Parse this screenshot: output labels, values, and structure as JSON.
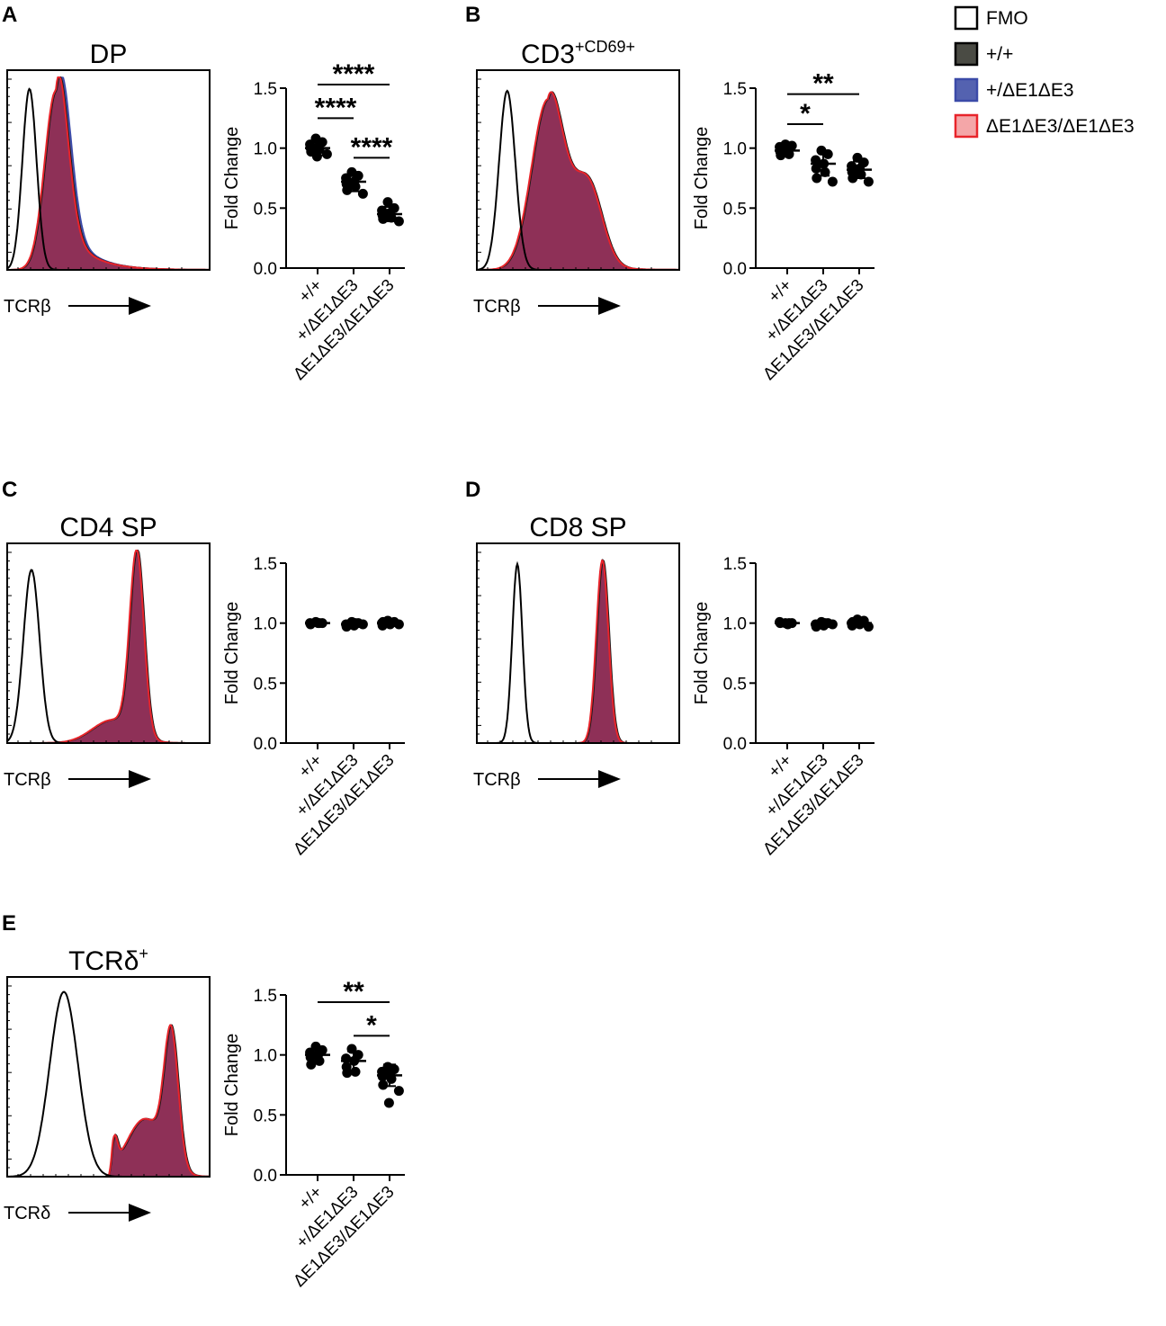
{
  "figure": {
    "legend": [
      {
        "label": "FMO",
        "fill": "#ffffff",
        "stroke": "#000000"
      },
      {
        "label": "+/+",
        "fill": "#4a4b44",
        "stroke": "#000000"
      },
      {
        "label": "+/ΔE1ΔE3",
        "fill": "#5462b0",
        "stroke": "#3b4aa8"
      },
      {
        "label": "ΔE1ΔE3/ΔE1ΔE3",
        "fill": "#f4a6a8",
        "stroke": "#e8242b"
      }
    ],
    "colors": {
      "overlay_fill": "#8e3057",
      "overlay_stroke": "#e8242b",
      "blue_edge": "#3b4aa8",
      "fmo_line": "#000000"
    }
  },
  "chart_data": [
    {
      "panel": "A",
      "type": "histogram",
      "title": "DP",
      "title_sup": "",
      "xlabel": "TCRβ",
      "fmo_peaks": [
        {
          "mu": 0.11,
          "sigma": 0.035,
          "height": 0.94
        }
      ],
      "sample_peaks": [
        {
          "mu": 0.24,
          "sigma": 0.055,
          "height": 0.93
        }
      ],
      "sample_tail": 0.35,
      "blue_shift": 0.015
    },
    {
      "panel": "A",
      "type": "scatter",
      "ylabel": "Fold Change",
      "categories": [
        "+/+",
        "+/ΔE1ΔE3",
        "ΔE1ΔE3/ΔE1ΔE3"
      ],
      "ylim": [
        0,
        1.5
      ],
      "yticks": [
        "0.0",
        "0.5",
        "1.0",
        "1.5"
      ],
      "groups": [
        {
          "mean": 1.0,
          "sd": 0.06,
          "points": [
            1.08,
            1.05,
            1.03,
            1.01,
            1.0,
            0.99,
            0.97,
            0.95,
            0.93
          ]
        },
        {
          "mean": 0.72,
          "sd": 0.08,
          "points": [
            0.8,
            0.77,
            0.75,
            0.72,
            0.7,
            0.68,
            0.65,
            0.62
          ]
        },
        {
          "mean": 0.45,
          "sd": 0.06,
          "points": [
            0.55,
            0.5,
            0.48,
            0.46,
            0.44,
            0.42,
            0.41,
            0.39
          ]
        }
      ],
      "significance": [
        {
          "from": 0,
          "to": 2,
          "y": 1.53,
          "label": "****"
        },
        {
          "from": 0,
          "to": 1,
          "y": 1.25,
          "label": "****"
        },
        {
          "from": 1,
          "to": 2,
          "y": 0.92,
          "label": "****"
        }
      ]
    },
    {
      "panel": "B",
      "type": "histogram",
      "title": "CD3",
      "title_sup": "+CD69+",
      "xlabel": "TCRβ",
      "fmo_peaks": [
        {
          "mu": 0.15,
          "sigma": 0.04,
          "height": 0.93
        }
      ],
      "sample_peaks": [
        {
          "mu": 0.35,
          "sigma": 0.08,
          "height": 0.88
        },
        {
          "mu": 0.55,
          "sigma": 0.07,
          "height": 0.42
        }
      ],
      "sample_tail": 0.15,
      "blue_shift": 0.0
    },
    {
      "panel": "B",
      "type": "scatter",
      "ylabel": "Fold Change",
      "categories": [
        "+/+",
        "+/ΔE1ΔE3",
        "ΔE1ΔE3/ΔE1ΔE3"
      ],
      "ylim": [
        0,
        1.5
      ],
      "yticks": [
        "0.0",
        "0.5",
        "1.0",
        "1.5"
      ],
      "groups": [
        {
          "mean": 0.98,
          "sd": 0.04,
          "points": [
            1.03,
            1.02,
            1.01,
            0.99,
            0.97,
            0.95,
            0.94
          ]
        },
        {
          "mean": 0.87,
          "sd": 0.1,
          "points": [
            0.98,
            0.95,
            0.9,
            0.87,
            0.83,
            0.8,
            0.75,
            0.72
          ]
        },
        {
          "mean": 0.82,
          "sd": 0.07,
          "points": [
            0.92,
            0.88,
            0.85,
            0.83,
            0.8,
            0.78,
            0.75,
            0.72
          ]
        }
      ],
      "significance": [
        {
          "from": 0,
          "to": 2,
          "y": 1.45,
          "label": "**"
        },
        {
          "from": 0,
          "to": 1,
          "y": 1.2,
          "label": "*"
        }
      ]
    },
    {
      "panel": "C",
      "type": "histogram",
      "title": "CD4 SP",
      "title_sup": "",
      "xlabel": "TCRβ",
      "fmo_peaks": [
        {
          "mu": 0.12,
          "sigma": 0.04,
          "height": 0.9
        }
      ],
      "sample_peaks": [
        {
          "mu": 0.64,
          "sigma": 0.035,
          "height": 0.95
        },
        {
          "mu": 0.52,
          "sigma": 0.1,
          "height": 0.12
        }
      ],
      "sample_tail": 0.0,
      "blue_shift": 0.0
    },
    {
      "panel": "C",
      "type": "scatter",
      "ylabel": "Fold Change",
      "categories": [
        "+/+",
        "+/ΔE1ΔE3",
        "ΔE1ΔE3/ΔE1ΔE3"
      ],
      "ylim": [
        0,
        1.5
      ],
      "yticks": [
        "0.0",
        "0.5",
        "1.0",
        "1.5"
      ],
      "groups": [
        {
          "mean": 1.0,
          "sd": 0.01,
          "points": [
            1.01,
            1.0,
            1.0,
            1.0,
            0.99,
            1.0
          ]
        },
        {
          "mean": 0.99,
          "sd": 0.02,
          "points": [
            1.01,
            1.0,
            0.99,
            0.98,
            0.97,
            1.0,
            0.98,
            0.99
          ]
        },
        {
          "mean": 1.0,
          "sd": 0.02,
          "points": [
            1.02,
            1.01,
            1.0,
            0.99,
            0.98,
            1.0,
            1.01,
            0.99
          ]
        }
      ],
      "significance": []
    },
    {
      "panel": "D",
      "type": "histogram",
      "title": "CD8 SP",
      "title_sup": "",
      "xlabel": "TCRβ",
      "fmo_peaks": [
        {
          "mu": 0.2,
          "sigma": 0.025,
          "height": 0.93
        }
      ],
      "sample_peaks": [
        {
          "mu": 0.62,
          "sigma": 0.03,
          "height": 0.95
        }
      ],
      "sample_tail": 0.0,
      "blue_shift": 0.0
    },
    {
      "panel": "D",
      "type": "scatter",
      "ylabel": "Fold Change",
      "categories": [
        "+/+",
        "+/ΔE1ΔE3",
        "ΔE1ΔE3/ΔE1ΔE3"
      ],
      "ylim": [
        0,
        1.5
      ],
      "yticks": [
        "0.0",
        "0.5",
        "1.0",
        "1.5"
      ],
      "groups": [
        {
          "mean": 1.0,
          "sd": 0.01,
          "points": [
            1.0,
            1.0,
            1.01,
            0.99,
            1.0,
            1.0
          ]
        },
        {
          "mean": 0.99,
          "sd": 0.02,
          "points": [
            1.01,
            1.0,
            0.99,
            0.98,
            0.97,
            1.0,
            0.98,
            0.99,
            1.0
          ]
        },
        {
          "mean": 1.0,
          "sd": 0.02,
          "points": [
            1.03,
            1.02,
            1.0,
            0.99,
            0.98,
            1.0,
            1.01,
            0.97
          ]
        }
      ],
      "significance": []
    },
    {
      "panel": "E",
      "type": "histogram",
      "title": "TCRδ",
      "title_sup": "+",
      "xlabel": "TCRδ",
      "fmo_peaks": [
        {
          "mu": 0.28,
          "sigma": 0.07,
          "height": 0.96
        }
      ],
      "sample_peaks": [
        {
          "mu": 0.81,
          "sigma": 0.035,
          "height": 0.68
        },
        {
          "mu": 0.68,
          "sigma": 0.09,
          "height": 0.3
        },
        {
          "mu": 0.53,
          "sigma": 0.015,
          "height": 0.14
        }
      ],
      "sample_start": 0.5,
      "sample_tail": 0.0,
      "blue_shift": 0.0
    },
    {
      "panel": "E",
      "type": "scatter",
      "ylabel": "Fold Change",
      "categories": [
        "+/+",
        "+/ΔE1ΔE3",
        "ΔE1ΔE3/ΔE1ΔE3"
      ],
      "ylim": [
        0,
        1.5
      ],
      "yticks": [
        "0.0",
        "0.5",
        "1.0",
        "1.5"
      ],
      "groups": [
        {
          "mean": 1.0,
          "sd": 0.05,
          "points": [
            1.07,
            1.04,
            1.02,
            1.0,
            0.98,
            0.95,
            0.92
          ]
        },
        {
          "mean": 0.95,
          "sd": 0.08,
          "points": [
            1.05,
            1.0,
            0.97,
            0.95,
            0.9,
            0.86,
            0.85
          ]
        },
        {
          "mean": 0.83,
          "sd": 0.09,
          "points": [
            0.9,
            0.88,
            0.86,
            0.84,
            0.82,
            0.8,
            0.75,
            0.7,
            0.6
          ]
        }
      ],
      "significance": [
        {
          "from": 0,
          "to": 2,
          "y": 1.44,
          "label": "**"
        },
        {
          "from": 1,
          "to": 2,
          "y": 1.16,
          "label": "*"
        }
      ]
    }
  ],
  "panel_labels": [
    "A",
    "B",
    "C",
    "D",
    "E"
  ]
}
